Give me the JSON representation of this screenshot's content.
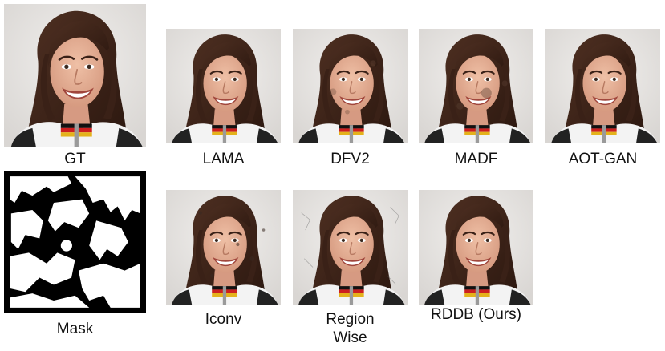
{
  "panels": {
    "gt": {
      "caption": "GT"
    },
    "mask": {
      "caption": "Mask"
    },
    "lama": {
      "caption": "LAMA"
    },
    "dfv2": {
      "caption": "DFV2"
    },
    "madf": {
      "caption": "MADF"
    },
    "aotgan": {
      "caption": "AOT-GAN"
    },
    "iconv": {
      "caption": "Iconv"
    },
    "region": {
      "caption_line1": "Region",
      "caption_line2": "Wise"
    },
    "rddb": {
      "caption": "RDDB (Ours)"
    }
  },
  "colors": {
    "background": "#ffffff",
    "photo_backdrop": "#e6e4e2",
    "hair": "#3e2419",
    "skin": "#e2ab91",
    "jersey": "#f3f3f3",
    "flag_black": "#111111",
    "flag_red": "#cc1f1f",
    "flag_gold": "#e4b21b",
    "mask": "#000000"
  }
}
